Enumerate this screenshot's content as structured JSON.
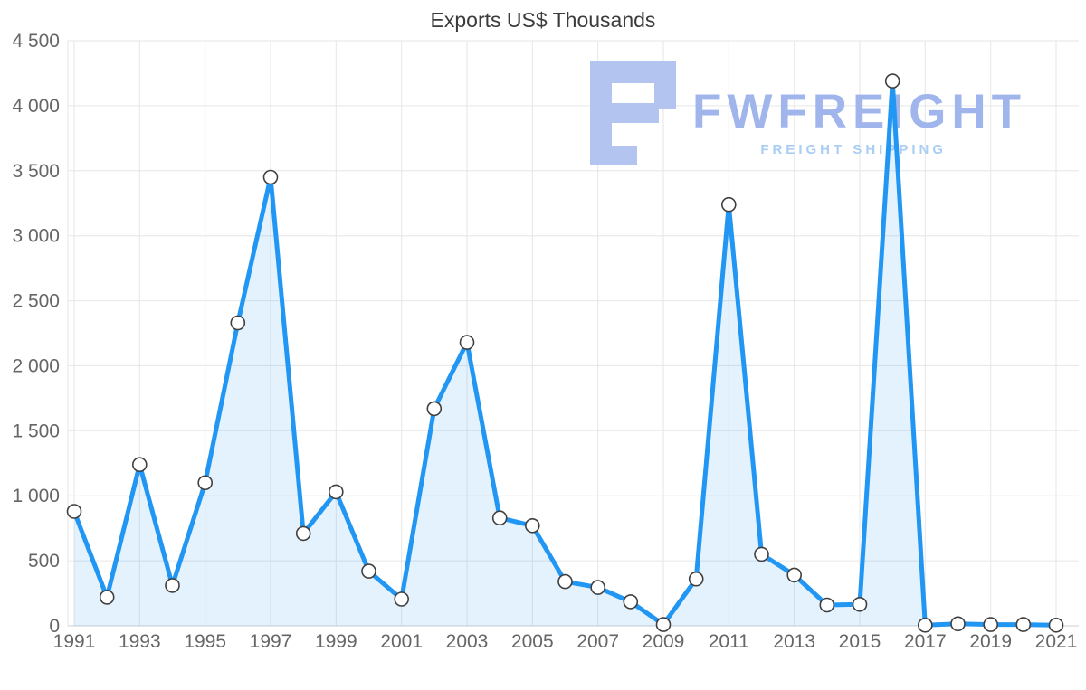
{
  "title": "Exports US$ Thousands",
  "watermark": {
    "brand": "FWFREIGHT",
    "tagline": "FREIGHT SHIPPING",
    "icon_color": "#b3c4f0",
    "brand_color": "#a0b5ec",
    "tagline_color": "#a9cdf3"
  },
  "chart_data": {
    "type": "area",
    "title": "Exports US$ Thousands",
    "xlabel": "",
    "ylabel": "",
    "x": [
      1991,
      1992,
      1993,
      1994,
      1995,
      1996,
      1997,
      1998,
      1999,
      2000,
      2001,
      2002,
      2003,
      2004,
      2005,
      2006,
      2007,
      2008,
      2009,
      2010,
      2011,
      2012,
      2013,
      2014,
      2015,
      2016,
      2017,
      2018,
      2019,
      2020,
      2021
    ],
    "values": [
      880,
      220,
      1240,
      310,
      1100,
      2330,
      3450,
      710,
      1030,
      420,
      205,
      1670,
      2180,
      830,
      770,
      340,
      295,
      185,
      10,
      360,
      3240,
      550,
      390,
      160,
      165,
      4190,
      5,
      15,
      10,
      10,
      5
    ],
    "ylim": [
      0,
      4500
    ],
    "ytick_step": 500,
    "xtick_step": 2,
    "grid": "on",
    "legend": "none",
    "colors": {
      "line": "#2196f3",
      "fill": "rgba(33,150,243,0.12)",
      "marker_fill": "#ffffff",
      "marker_stroke": "#3f3f3f",
      "grid": "#e6e6e6",
      "axis_line": "#cfcfcf",
      "axis_text": "#666666"
    }
  }
}
